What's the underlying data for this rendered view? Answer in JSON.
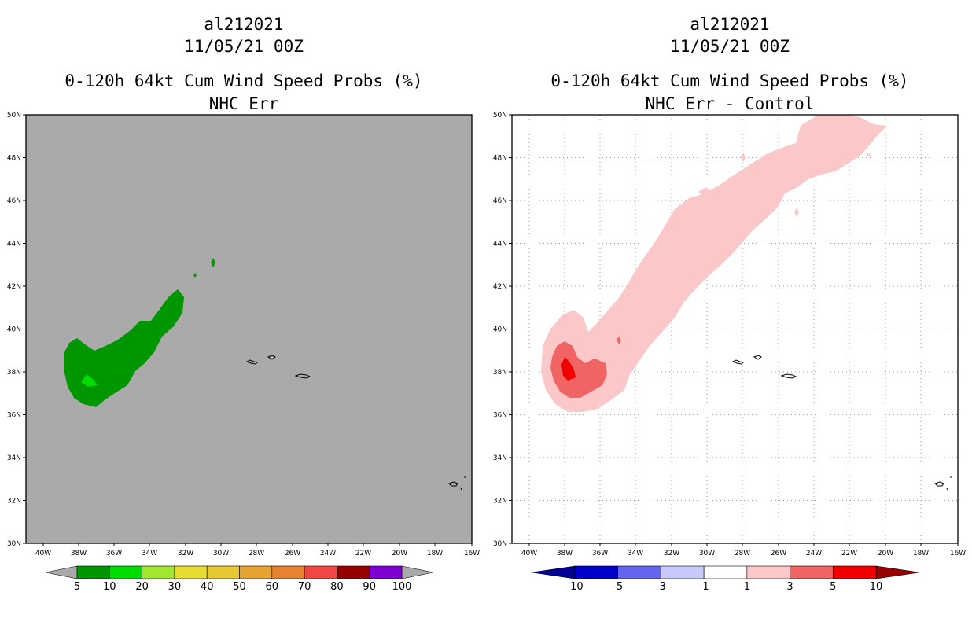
{
  "chart_data": [
    {
      "type": "heatmap",
      "title_line1": "al212021",
      "title_line2": "11/05/21 00Z",
      "title_line3": "0-120h 64kt Cum Wind Speed Probs (%)",
      "title_line4": "NHC Err",
      "x_ticks": [
        "40W",
        "38W",
        "36W",
        "34W",
        "32W",
        "30W",
        "28W",
        "26W",
        "24W",
        "22W",
        "20W",
        "18W",
        "16W"
      ],
      "y_ticks": [
        "50N",
        "48N",
        "46N",
        "44N",
        "42N",
        "40N",
        "38N",
        "36N",
        "34N",
        "32N",
        "30N"
      ],
      "xlim": [
        -41,
        -16
      ],
      "ylim": [
        30,
        50
      ],
      "grid": false,
      "background_color": "#aaaaaa",
      "colorbar": {
        "labels": [
          "5",
          "10",
          "20",
          "30",
          "40",
          "50",
          "60",
          "70",
          "80",
          "90",
          "100"
        ],
        "colors": [
          "#009600",
          "#00dc00",
          "#a0e632",
          "#e6dc32",
          "#e6c832",
          "#e6a532",
          "#e68232",
          "#f04646",
          "#960000",
          "#7d00d2"
        ],
        "end_color": "#aaaaaa"
      }
    },
    {
      "type": "heatmap",
      "title_line1": "al212021",
      "title_line2": "11/05/21 00Z",
      "title_line3": "0-120h 64kt Cum Wind Speed Probs (%)",
      "title_line4": "NHC Err - Control",
      "x_ticks": [
        "40W",
        "38W",
        "36W",
        "34W",
        "32W",
        "30W",
        "28W",
        "26W",
        "24W",
        "22W",
        "20W",
        "18W",
        "16W"
      ],
      "y_ticks": [
        "50N",
        "48N",
        "46N",
        "44N",
        "42N",
        "40N",
        "38N",
        "36N",
        "34N",
        "32N",
        "30N"
      ],
      "xlim": [
        -41,
        -16
      ],
      "ylim": [
        30,
        50
      ],
      "grid": true,
      "background_color": "#ffffff",
      "colorbar": {
        "labels": [
          "-10",
          "-5",
          "-3",
          "-1",
          "1",
          "3",
          "5",
          "10"
        ],
        "colors": [
          "#0000c8",
          "#6464f0",
          "#c8c8fa",
          "#ffffff",
          "#fac8c8",
          "#f06464",
          "#f00000"
        ],
        "left_color": "#000096",
        "right_color": "#960000"
      }
    }
  ]
}
